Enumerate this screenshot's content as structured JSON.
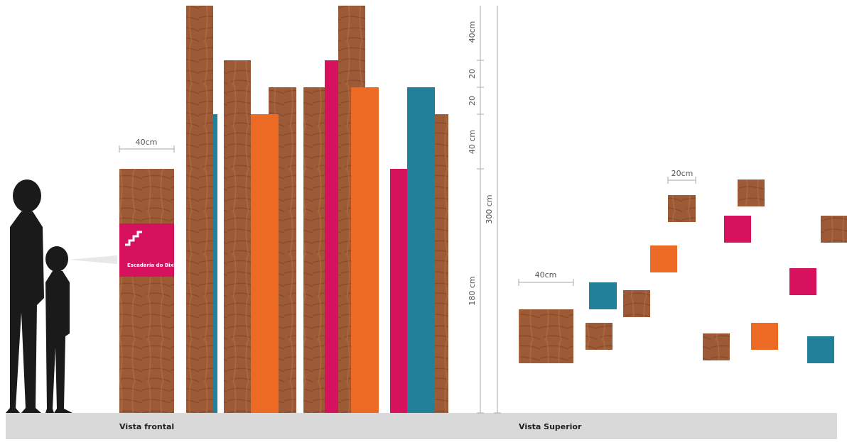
{
  "front_view": {
    "caption": "Vista frontal",
    "width_label": "40cm",
    "sign_text": "Escadaria do Bixiga",
    "dimensions": [
      "40cm",
      "20",
      "20",
      "40 cm",
      "180 cm"
    ],
    "total_height": "300 cm"
  },
  "top_view": {
    "caption": "Vista Superior",
    "large_label": "40cm",
    "small_label": "20cm"
  }
}
